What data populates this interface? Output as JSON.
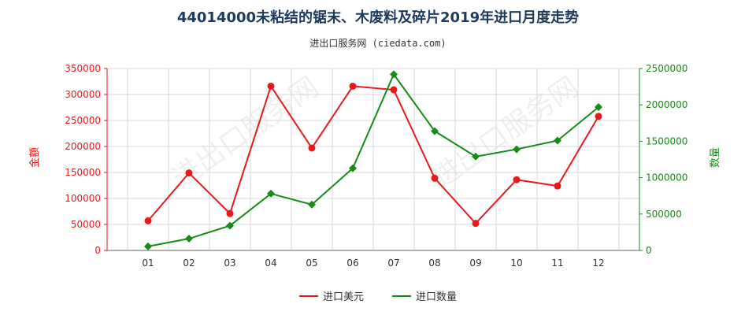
{
  "chart_data": {
    "type": "line",
    "title": "44014000未粘结的锯末、木废料及碎片2019年进口月度走势",
    "subtitle": "进出口服务网 (ciedata.com)",
    "categories": [
      "01",
      "02",
      "03",
      "04",
      "05",
      "06",
      "07",
      "08",
      "09",
      "10",
      "11",
      "12"
    ],
    "y_left": {
      "label": "金额",
      "ylim": [
        0,
        350000
      ],
      "ticks": [
        0,
        50000,
        100000,
        150000,
        200000,
        250000,
        300000,
        350000
      ]
    },
    "y_right": {
      "label": "数量",
      "ylim": [
        0,
        2500000
      ],
      "ticks": [
        0,
        500000,
        1000000,
        1500000,
        2000000,
        2500000
      ]
    },
    "series": [
      {
        "name": "进口美元",
        "axis": "left",
        "color": "#e8191b",
        "marker": "circle",
        "values": [
          57000,
          149000,
          71000,
          316000,
          197000,
          316000,
          309000,
          139000,
          52000,
          136000,
          124000,
          258000
        ]
      },
      {
        "name": "进口数量",
        "axis": "right",
        "color": "#168c16",
        "marker": "diamond",
        "values": [
          55000,
          162000,
          340000,
          780000,
          630000,
          1130000,
          2420000,
          1640000,
          1290000,
          1390000,
          1510000,
          1970000
        ]
      }
    ],
    "grid": true,
    "legend": "bottom-center",
    "watermark_text": "进出口服务网"
  }
}
